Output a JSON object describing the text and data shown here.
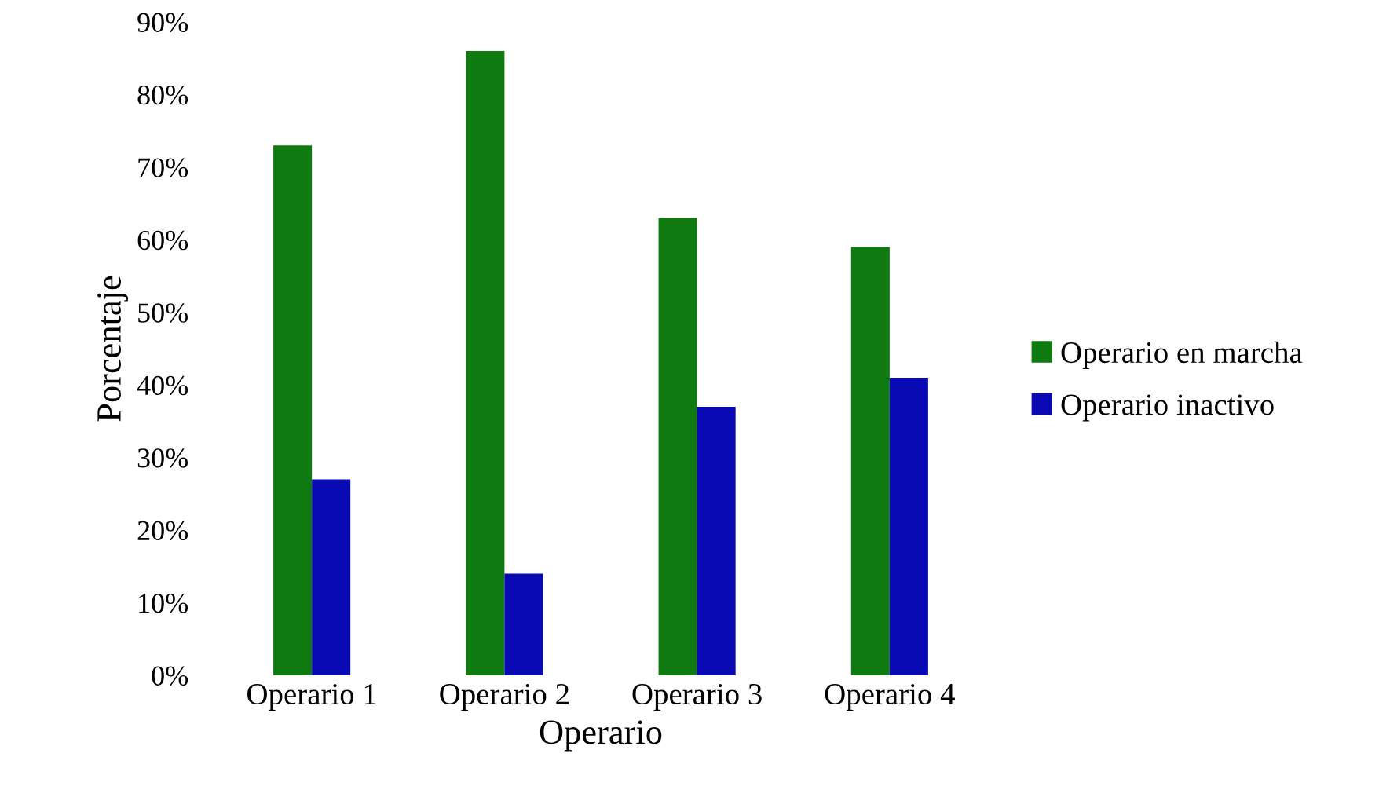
{
  "chart_data": {
    "type": "bar",
    "xlabel": "Operario",
    "ylabel": "Porcentaje",
    "categories": [
      "Operario 1",
      "Operario 2",
      "Operario 3",
      "Operario 4"
    ],
    "series": [
      {
        "name": "Operario en marcha",
        "color": "#0f7a0f",
        "values": [
          73,
          86,
          63,
          59
        ]
      },
      {
        "name": "Operario inactivo",
        "color": "#0a0ab4",
        "values": [
          27,
          14,
          37,
          41
        ]
      }
    ],
    "ylim": [
      0,
      90
    ],
    "yticks": [
      {
        "value": 0,
        "label": "0%"
      },
      {
        "value": 10,
        "label": "10%"
      },
      {
        "value": 20,
        "label": "20%"
      },
      {
        "value": 30,
        "label": "30%"
      },
      {
        "value": 40,
        "label": "40%"
      },
      {
        "value": 50,
        "label": "50%"
      },
      {
        "value": 60,
        "label": "60%"
      },
      {
        "value": 70,
        "label": "70%"
      },
      {
        "value": 80,
        "label": "80%"
      },
      {
        "value": 90,
        "label": "90%"
      }
    ],
    "grid": false,
    "legend": "right"
  }
}
